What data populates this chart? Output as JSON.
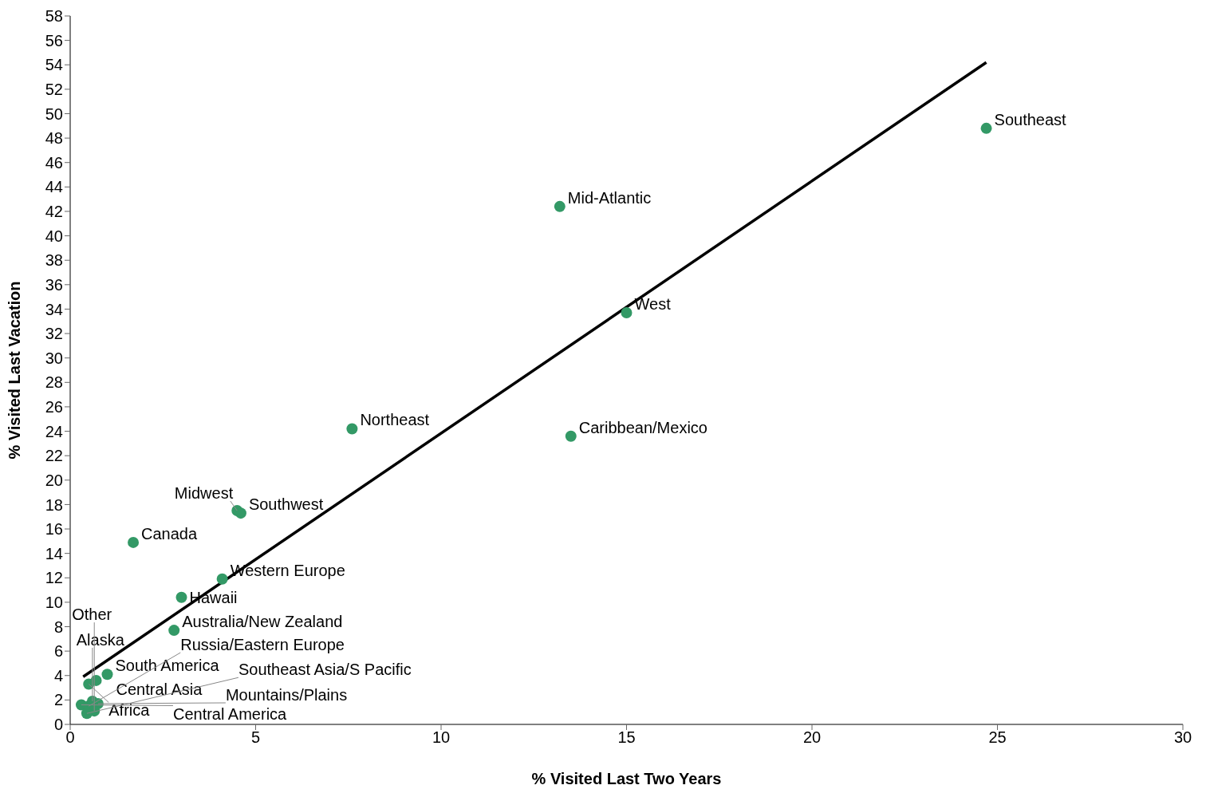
{
  "chart_data": {
    "type": "scatter",
    "xlabel": "% Visited Last Two Years",
    "ylabel": "% Visited Last Vacation",
    "xlim": [
      0,
      30
    ],
    "xticks": [
      0,
      5,
      10,
      15,
      20,
      25,
      30
    ],
    "ylim": [
      0,
      58
    ],
    "yticks": [
      0,
      2,
      4,
      6,
      8,
      10,
      12,
      14,
      16,
      18,
      20,
      22,
      24,
      26,
      28,
      30,
      32,
      34,
      36,
      38,
      40,
      42,
      44,
      46,
      48,
      50,
      52,
      54,
      56,
      58
    ],
    "marker": "circle",
    "series": [
      {
        "color": "#339966",
        "x": [
          24.7,
          13.2,
          15.0,
          7.6,
          13.5,
          4.5,
          4.6,
          1.7,
          4.1,
          3.0,
          2.8,
          1.0,
          0.7,
          0.5,
          0.3,
          0.5,
          0.75,
          0.6,
          0.65,
          0.45
        ],
        "values": [
          48.8,
          42.4,
          33.7,
          24.2,
          23.6,
          17.5,
          17.3,
          14.9,
          11.9,
          10.4,
          7.7,
          4.1,
          3.6,
          3.3,
          1.6,
          1.5,
          1.7,
          1.9,
          1.1,
          0.9
        ],
        "value_labels": [
          "Southeast",
          "Mid-Atlantic",
          "West",
          "Northeast",
          "Caribbean/Mexico",
          "Midwest",
          "Southwest",
          "Canada",
          "Western Europe",
          "Hawaii",
          "Australia/New Zealand",
          "South America",
          "Central Asia",
          "Africa",
          "Central America",
          "Russia/Eastern Europe",
          "Mountains/Plains",
          "Alaska",
          "Other",
          "Southeast Asia/S Pacific"
        ]
      },
      {
        "type": "line",
        "color": "#000000",
        "marker": "none",
        "x": [
          0.35,
          24.7
        ],
        "values": [
          3.9,
          54.2
        ]
      }
    ]
  }
}
